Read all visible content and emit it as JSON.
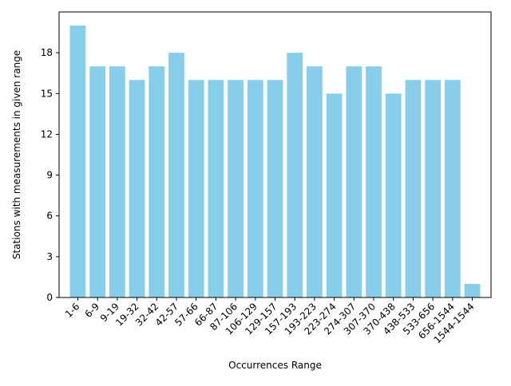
{
  "chart_data": {
    "type": "bar",
    "title": "",
    "xlabel": "Occurrences Range",
    "ylabel": "Stations with measurements in given range",
    "categories": [
      "1-6",
      "6-9",
      "9-19",
      "19-32",
      "32-42",
      "42-57",
      "57-66",
      "66-87",
      "87-106",
      "106-129",
      "129-157",
      "157-193",
      "193-223",
      "223-274",
      "274-307",
      "307-370",
      "370-438",
      "438-533",
      "533-656",
      "656-1544",
      "1544-1544"
    ],
    "values": [
      20,
      17,
      17,
      16,
      17,
      18,
      16,
      16,
      16,
      16,
      16,
      18,
      17,
      15,
      17,
      17,
      15,
      16,
      16,
      16,
      1
    ],
    "ylim": [
      0,
      21
    ],
    "yticks": [
      0,
      3,
      6,
      9,
      12,
      15,
      18
    ],
    "grid": false,
    "bar_color": "#87ceeb"
  }
}
